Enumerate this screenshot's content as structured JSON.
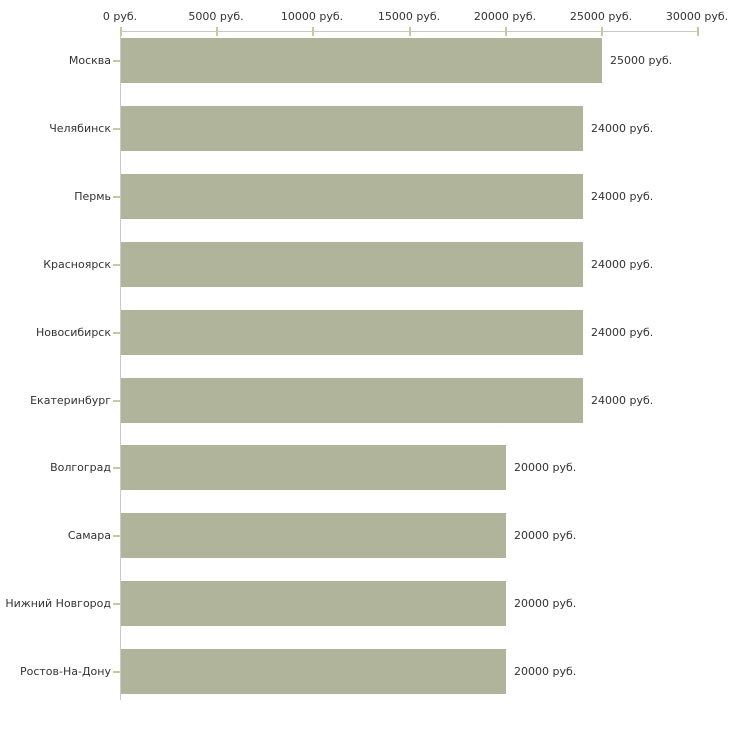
{
  "chart_data": {
    "type": "bar",
    "orientation": "horizontal",
    "categories": [
      "Москва",
      "Челябинск",
      "Пермь",
      "Красноярск",
      "Новосибирск",
      "Екатеринбург",
      "Волгоград",
      "Самара",
      "Нижний Новгород",
      "Ростов-На-Дону"
    ],
    "values": [
      25000,
      24000,
      24000,
      24000,
      24000,
      24000,
      20000,
      20000,
      20000,
      20000
    ],
    "value_labels": [
      "25000 руб.",
      "24000 руб.",
      "24000 руб.",
      "24000 руб.",
      "24000 руб.",
      "24000 руб.",
      "20000 руб.",
      "20000 руб.",
      "20000 руб.",
      "20000 руб."
    ],
    "x_ticks": [
      0,
      5000,
      10000,
      15000,
      20000,
      25000,
      30000
    ],
    "x_tick_labels": [
      "0 руб.",
      "5000 руб.",
      "10000 руб.",
      "15000 руб.",
      "20000 руб.",
      "25000 руб.",
      "30000 руб."
    ],
    "xlim": [
      0,
      30000
    ],
    "unit": "руб.",
    "grid": false,
    "legend": false,
    "axis_position": "top"
  },
  "colors": {
    "bar": "#b0b49b",
    "axis": "#c9c9c9",
    "tick": "#c8c89b",
    "text": "#333333",
    "background": "#ffffff"
  }
}
